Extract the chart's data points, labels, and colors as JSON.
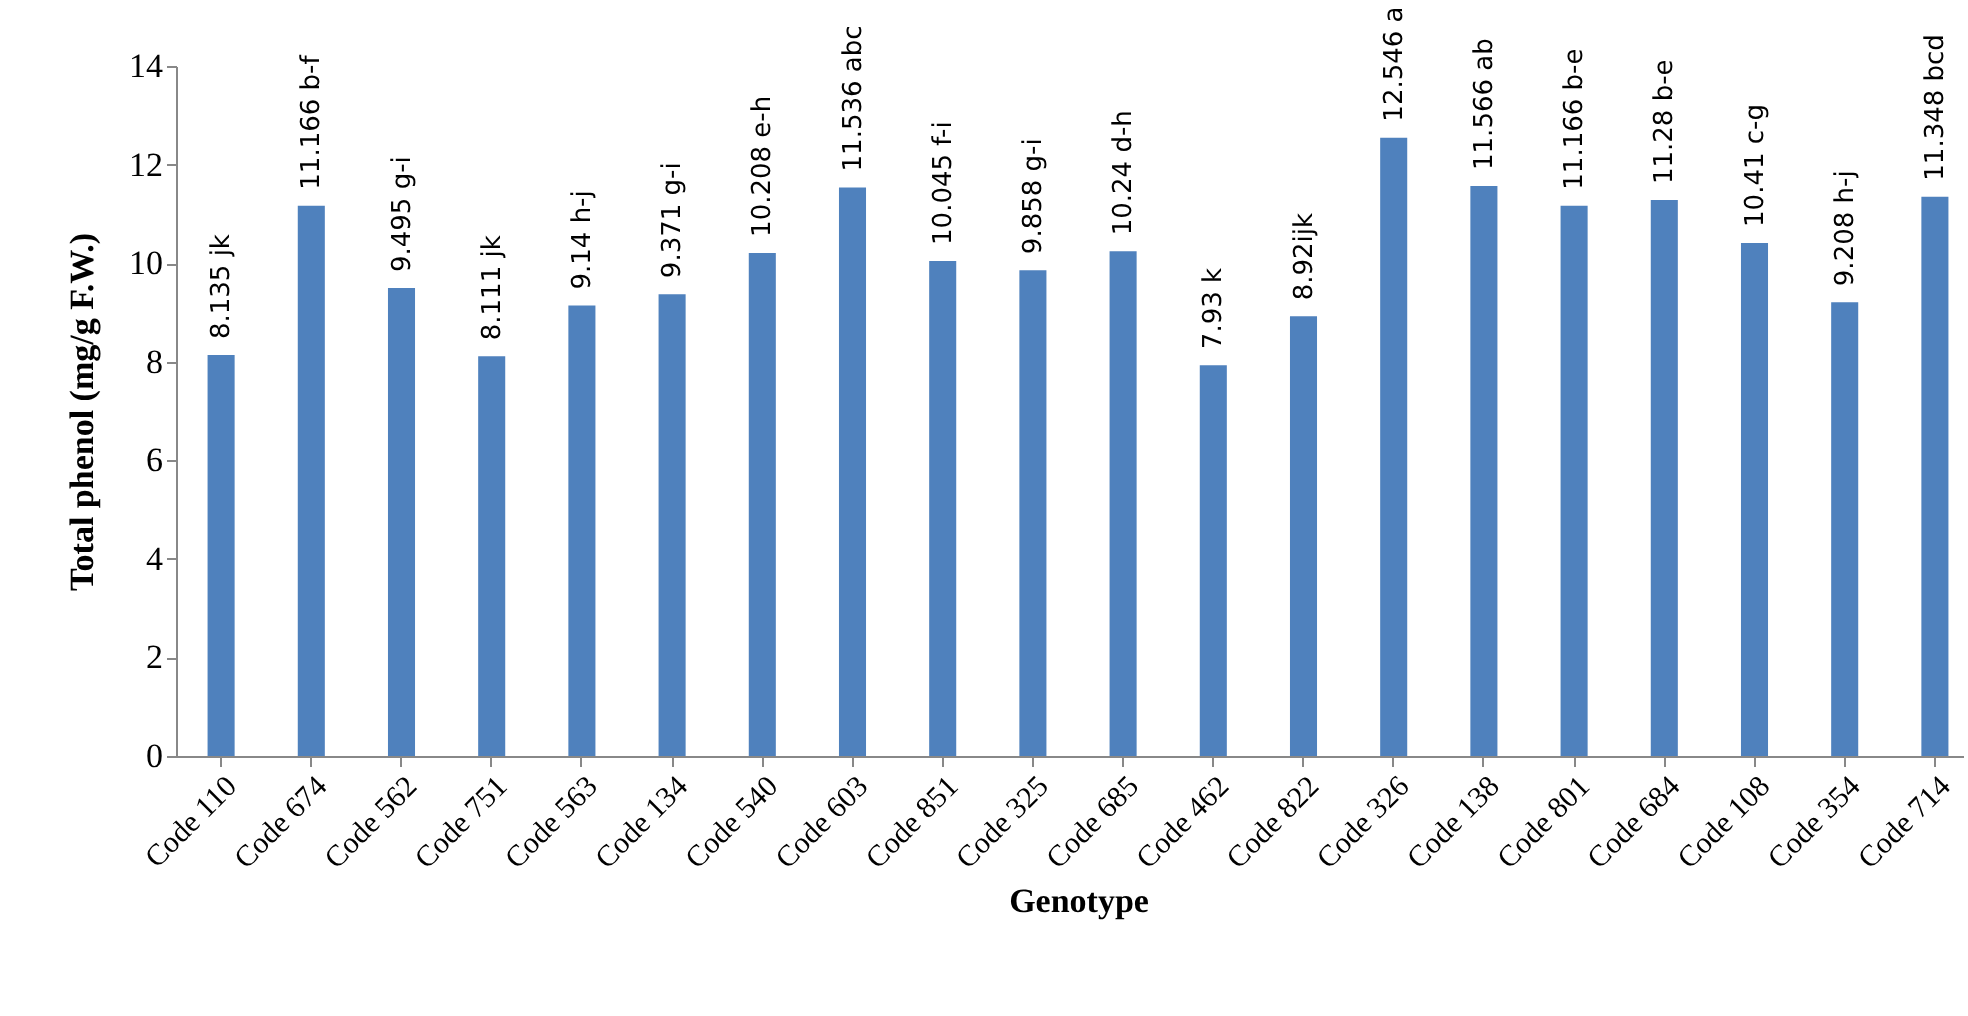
{
  "chart_data": {
    "type": "bar",
    "xlabel": "Genotype",
    "ylabel": "Total phenol (mg/g F.W.)",
    "categories": [
      "Code 110",
      "Code 674",
      "Code 562",
      "Code 751",
      "Code 563",
      "Code 134",
      "Code 540",
      "Code 603",
      "Code 851",
      "Code 325",
      "Code 685",
      "Code 462",
      "Code 822",
      "Code 326",
      "Code 138",
      "Code 801",
      "Code 684",
      "Code 108",
      "Code 354",
      "Code 714"
    ],
    "values": [
      8.135,
      11.166,
      9.495,
      8.111,
      9.14,
      9.371,
      10.208,
      11.536,
      10.045,
      9.858,
      10.24,
      7.93,
      8.92,
      12.546,
      11.566,
      11.166,
      11.28,
      10.41,
      9.208,
      11.348
    ],
    "value_labels": [
      "8.135 jk",
      "11.166 b-f",
      "9.495 g-i",
      "8.111 jk",
      "9.14 h-j",
      "9.371 g-i",
      "10.208 e-h",
      "11.536 abc",
      "10.045 f-i",
      "9.858 g-i",
      "10.24 d-h",
      "7.93 k",
      "8.92ijk",
      "12.546 a",
      "11.566 ab",
      "11.166 b-e",
      "11.28 b-e",
      "10.41 c-g",
      "9.208 h-j",
      "11.348 bcd"
    ],
    "color": "#4f81bd",
    "ylim": [
      0,
      14
    ],
    "yticks": [
      0,
      2,
      4,
      6,
      8,
      10,
      12,
      14
    ],
    "grid": false
  }
}
